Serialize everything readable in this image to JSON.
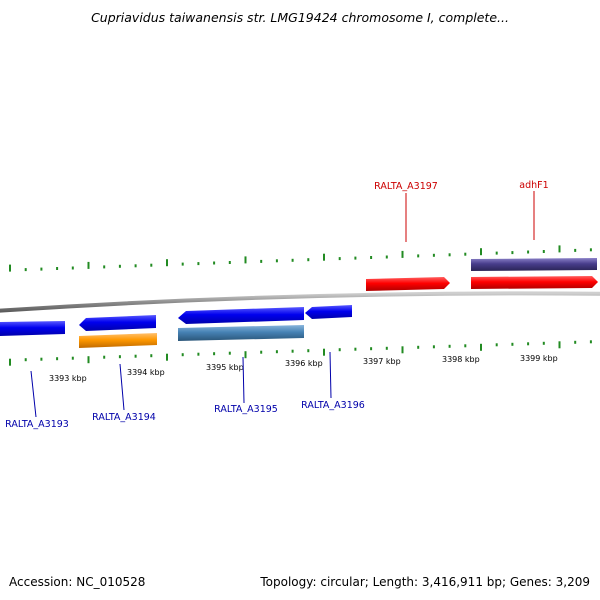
{
  "title": "Cupriavidus taiwanensis str. LMG19424 chromosome I, complete...",
  "footer": {
    "accession": "Accession: NC_010528",
    "summary": "Topology: circular; Length: 3,416,911 bp; Genes: 3,209"
  },
  "colors": {
    "forward_gene": "#ff0000",
    "reverse_gene": "#0000ff",
    "forward_label": "#cc0000",
    "reverse_label": "#0000aa",
    "orange_feature": "#ff9900",
    "steelblue_feature": "#4682b4",
    "purple_feature": "#483d8b",
    "backbone": "#888888",
    "ticks": "#228b22"
  },
  "scale_labels": [
    "3393 kbp",
    "3394 kbp",
    "3395 kbp",
    "3396 kbp",
    "3397 kbp",
    "3398 kbp",
    "3399 kbp"
  ],
  "gene_labels": {
    "forward": [
      "RALTA_A3197",
      "adhF1"
    ],
    "reverse": [
      "RALTA_A3193",
      "RALTA_A3194",
      "RALTA_A3195",
      "RALTA_A3196"
    ]
  }
}
